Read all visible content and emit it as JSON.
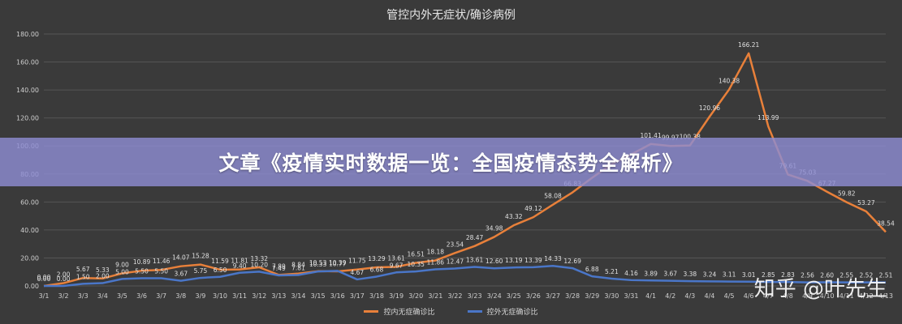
{
  "banner": "文章《疫情实时数据一览：全国疫情态势全解析》",
  "watermark": "知乎 @叶先生",
  "colors": {
    "background": "#3a3a3a",
    "banner": "#8e8cd2",
    "inland": "#e8803a",
    "outside": "#4a76c8",
    "grid": "#555555",
    "text": "#cfcfcf"
  },
  "chart_data": {
    "type": "line",
    "title": "管控内外无症状/确诊病例",
    "xlabel": "",
    "ylabel": "",
    "ylim": [
      0,
      180
    ],
    "yticks": [
      "0.00",
      "20.00",
      "40.00",
      "60.00",
      "80.00",
      "100.00",
      "120.00",
      "140.00",
      "160.00",
      "180.00"
    ],
    "grid": true,
    "legend": "bottom",
    "categories": [
      "3/1",
      "3/2",
      "3/3",
      "3/4",
      "3/5",
      "3/6",
      "3/7",
      "3/8",
      "3/9",
      "3/10",
      "3/11",
      "3/12",
      "3/13",
      "3/14",
      "3/15",
      "3/16",
      "3/17",
      "3/18",
      "3/19",
      "3/20",
      "3/21",
      "3/22",
      "3/23",
      "3/24",
      "3/25",
      "3/26",
      "3/27",
      "3/28",
      "3/29",
      "3/30",
      "3/31",
      "4/1",
      "4/2",
      "4/3",
      "4/4",
      "4/5",
      "4/6",
      "4/7",
      "4/8",
      "4/9",
      "4/10",
      "4/11",
      "4/12",
      "4/13"
    ],
    "series": [
      {
        "name": "控内无症确诊比",
        "values": [
          0.0,
          2.0,
          5.67,
          5.33,
          9.0,
          10.89,
          11.46,
          14.07,
          15.28,
          11.59,
          11.81,
          13.32,
          7.89,
          8.84,
          10.53,
          10.39,
          11.75,
          13.29,
          13.61,
          16.51,
          18.18,
          23.54,
          28.47,
          34.98,
          43.32,
          49.12,
          58.08,
          66.83,
          77.27,
          87.0,
          94.0,
          101.41,
          99.97,
          100.38,
          120.96,
          140.38,
          166.21,
          113.99,
          79.61,
          75.03,
          67.27,
          59.82,
          53.27,
          38.54
        ],
        "labels": [
          "0.00",
          "2.00",
          "5.67",
          "5.33",
          "9.00",
          "10.89",
          "11.46",
          "14.07",
          "15.28",
          "11.59",
          "11.81",
          "13.32",
          "7.89",
          "8.84",
          "10.53",
          "10.39",
          "11.75",
          "13.29",
          "13.61",
          "16.51",
          "18.18",
          "23.54",
          "28.47",
          "34.98",
          "43.32",
          "49.12",
          "58.08",
          "66.83",
          "",
          "",
          "",
          "101.41",
          "99.97",
          "100.38",
          "120.96",
          "140.38",
          "166.21",
          "113.99",
          "79.61",
          "75.03",
          "67.27",
          "59.82",
          "53.27",
          "38.54"
        ]
      },
      {
        "name": "控外无症确诊比",
        "values": [
          0.0,
          0.0,
          1.5,
          2.0,
          5.0,
          5.5,
          5.5,
          3.67,
          5.75,
          6.5,
          9.4,
          10.2,
          7.49,
          7.81,
          10.33,
          10.77,
          4.67,
          6.68,
          9.67,
          10.35,
          11.86,
          12.47,
          13.61,
          12.6,
          13.19,
          13.39,
          14.33,
          12.69,
          6.88,
          5.21,
          4.16,
          3.89,
          3.67,
          3.38,
          3.24,
          3.11,
          3.01,
          2.85,
          2.83,
          2.56,
          2.6,
          2.55,
          2.52,
          2.51
        ],
        "labels": [
          "0.00",
          "0.00",
          "1.50",
          "2.00",
          "5.00",
          "5.50",
          "5.50",
          "3.67",
          "5.75",
          "6.50",
          "9.40",
          "10.20",
          "7.49",
          "7.81",
          "10.33",
          "10.77",
          "4.67",
          "6.68",
          "9.67",
          "10.35",
          "11.86",
          "12.47",
          "13.61",
          "12.60",
          "13.19",
          "13.39",
          "14.33",
          "12.69",
          "6.88",
          "5.21",
          "4.16",
          "3.89",
          "3.67",
          "3.38",
          "3.24",
          "3.11",
          "3.01",
          "2.85",
          "2.83",
          "2.56",
          "2.60",
          "2.55",
          "2.52",
          "2.51"
        ]
      }
    ]
  }
}
